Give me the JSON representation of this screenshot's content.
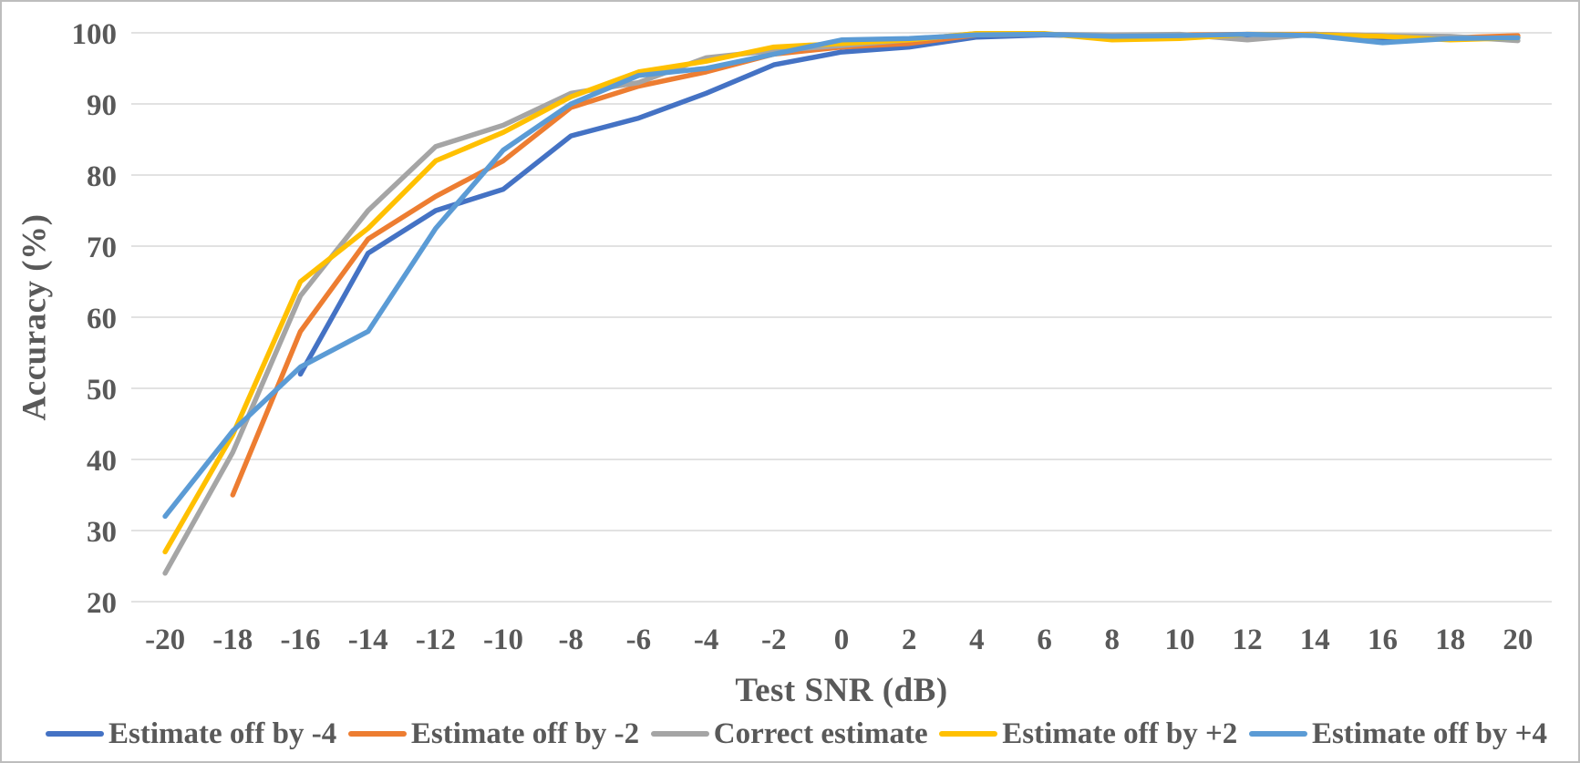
{
  "colors": {
    "text": "#595959",
    "gridline": "#D9D9D9",
    "frame_border": "#BDBDBD",
    "background": "#FFFFFF"
  },
  "chart_data": {
    "type": "line",
    "title": "",
    "xlabel": "Test SNR (dB)",
    "ylabel": "Accuracy (%)",
    "x": [
      -20,
      -18,
      -16,
      -14,
      -12,
      -10,
      -8,
      -6,
      -4,
      -2,
      0,
      2,
      4,
      6,
      8,
      10,
      12,
      14,
      16,
      18,
      20
    ],
    "yticks": [
      20,
      30,
      40,
      50,
      60,
      70,
      80,
      90,
      100
    ],
    "ylim": [
      20,
      100
    ],
    "grid": "horizontal-only",
    "legend_position": "bottom",
    "line_width": 5.5,
    "series": [
      {
        "name": "Estimate off by -4",
        "color": "#4472C4",
        "values": [
          null,
          null,
          52,
          69,
          75,
          78,
          85.5,
          88,
          91.5,
          95.5,
          97.3,
          98,
          99.4,
          99.7,
          99.5,
          99.6,
          99.7,
          99.8,
          99.0,
          99.3,
          99.4
        ]
      },
      {
        "name": "Estimate off by -2",
        "color": "#ED7D31",
        "values": [
          null,
          35,
          58,
          71,
          77,
          82,
          89.5,
          92.5,
          94.5,
          97,
          98,
          98.5,
          99.7,
          99.8,
          99.6,
          99.7,
          99.8,
          99.8,
          99.6,
          99.3,
          99.6
        ]
      },
      {
        "name": "Correct estimate",
        "color": "#A5A5A5",
        "values": [
          24,
          41,
          63,
          75,
          84,
          87,
          91.5,
          93,
          96.5,
          97.5,
          98.2,
          99,
          99.9,
          99.8,
          99.7,
          99.8,
          99.0,
          99.8,
          99.6,
          99.5,
          98.9
        ]
      },
      {
        "name": "Estimate off by +2",
        "color": "#FFC000",
        "values": [
          27,
          43.5,
          65,
          72.5,
          82,
          86,
          91,
          94.5,
          96,
          98,
          98.5,
          99,
          99.9,
          99.9,
          99.0,
          99.2,
          99.8,
          99.7,
          99.5,
          99.0,
          99.3
        ]
      },
      {
        "name": "Estimate off by +4",
        "color": "#5B9BD5",
        "values": [
          32,
          44,
          53,
          58,
          72.5,
          83.5,
          90,
          94,
          95,
          97,
          99,
          99.2,
          99.7,
          99.8,
          99.5,
          99.6,
          99.8,
          99.6,
          98.6,
          99.2,
          99.3
        ]
      }
    ]
  }
}
